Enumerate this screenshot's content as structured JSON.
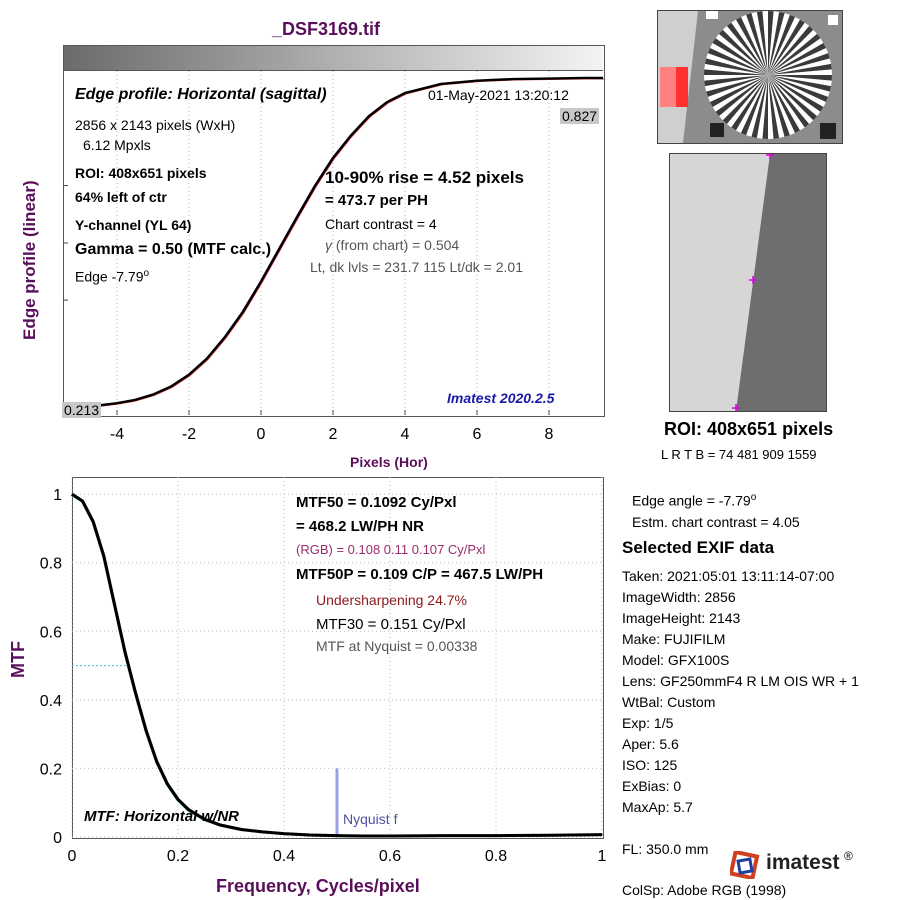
{
  "file_title": "_DSF3169.tif",
  "edge": {
    "title": "Edge profile: Horizontal (sagittal)",
    "datetime": "01-May-2021 13:20:12",
    "dims": "2856 x 2143 pixels (WxH)",
    "mpxls": "6.12 Mpxls",
    "roi": "ROI:  408x651 pixels",
    "position": "64% left of ctr",
    "channel": "Y-channel  (YL 64)",
    "gamma": "Gamma = 0.50 (MTF calc.)",
    "edge_angle_label": "Edge  -7.79",
    "edge_angle_sup": "o",
    "rise": "10-90% rise = 4.52 pixels",
    "per_ph": "=  473.7 per PH",
    "chart_contrast": "Chart contrast = 4",
    "gamma_symbol": "γ",
    "gamma_chart": " (from chart) = 0.504",
    "levels": "Lt, dk lvls = 231.7  115  Lt/dk = 2.01",
    "version": "Imatest 2020.2.5",
    "top_value": "0.827",
    "bottom_value": "0.213",
    "ylabel": "Edge profile (linear)",
    "xlabel": "Pixels (Hor)"
  },
  "mtf": {
    "mtf50": "MTF50 = 0.1092 Cy/Pxl",
    "lwph": "= 468.2 LW/PH  NR",
    "rgb": "(RGB) = 0.108  0.11  0.107 Cy/Pxl",
    "mtf50p": "MTF50P = 0.109 C/P = 467.5 LW/PH",
    "undersharpening": "Undersharpening 24.7%",
    "mtf30": "MTF30 = 0.151 Cy/Pxl",
    "nyquist_mtf": "MTF at Nyquist = 0.00338",
    "plot_label": "MTF: Horizontal w/NR",
    "nyquist_label": "Nyquist f",
    "ylabel": "MTF",
    "xlabel": "Frequency, Cycles/pixel"
  },
  "roi_panel": {
    "title": "ROI:  408x651 pixels",
    "coords": "L R  T B = 74 481  909 1559",
    "edge_angle": "Edge angle = -7.79",
    "edge_angle_sup": "o",
    "contrast": "Estm. chart contrast = 4.05"
  },
  "exif": {
    "heading": "Selected EXIF data",
    "rows": [
      "Taken: 2021:05:01 13:11:14-07:00",
      "ImageWidth:  2856",
      "ImageHeight:  2143",
      "Make:  FUJIFILM",
      "Model:  GFX100S",
      "Lens:    GF250mmF4 R LM OIS WR + 1",
      "WtBal:  Custom",
      "Exp:     1/5",
      "Aper:    5.6",
      "ISO:     125",
      "ExBias:  0",
      "MaxAp:  5.7",
      "FL:      350.0 mm",
      "ColSp:  Adobe RGB (1998)"
    ]
  },
  "logo_text": "imatest",
  "logo_reg": "®",
  "colors": {
    "title": "#5a0f5a",
    "version": "#1a1aa8",
    "curve": "#000000",
    "nyquist": "#9aa0e0",
    "marker": "#e000e0"
  },
  "chart_data": [
    {
      "type": "line",
      "title": "Edge profile: Horizontal (sagittal)",
      "xlabel": "Pixels (Hor)",
      "ylabel": "Edge profile (linear)",
      "xlim": [
        -5.5,
        9.5
      ],
      "ylim": [
        0.2,
        0.84
      ],
      "xticks": [
        -4,
        -2,
        0,
        2,
        4,
        6,
        8
      ],
      "grid": true,
      "series": [
        {
          "x": [
            -5.5,
            -5,
            -4.5,
            -4,
            -3.5,
            -3,
            -2.5,
            -2,
            -1.5,
            -1,
            -0.5,
            0,
            0.5,
            1,
            1.5,
            2,
            2.5,
            3,
            3.5,
            4,
            5,
            6,
            7,
            8,
            9,
            9.5
          ],
          "y": [
            0.213,
            0.215,
            0.218,
            0.222,
            0.228,
            0.238,
            0.253,
            0.275,
            0.305,
            0.345,
            0.392,
            0.448,
            0.508,
            0.568,
            0.626,
            0.678,
            0.72,
            0.756,
            0.782,
            0.799,
            0.816,
            0.822,
            0.825,
            0.826,
            0.827,
            0.827
          ]
        }
      ]
    },
    {
      "type": "line",
      "title": "MTF: Horizontal w/NR",
      "xlabel": "Frequency, Cycles/pixel",
      "ylabel": "MTF",
      "xlim": [
        0,
        1
      ],
      "ylim": [
        0,
        1.05
      ],
      "xticks": [
        0,
        0.2,
        0.4,
        0.6,
        0.8,
        1
      ],
      "yticks": [
        0,
        0.2,
        0.4,
        0.6,
        0.8,
        1
      ],
      "grid": true,
      "series": [
        {
          "x": [
            0,
            0.02,
            0.04,
            0.06,
            0.08,
            0.1,
            0.12,
            0.14,
            0.16,
            0.18,
            0.2,
            0.22,
            0.25,
            0.28,
            0.32,
            0.36,
            0.4,
            0.45,
            0.5,
            0.55,
            0.6,
            0.7,
            0.8,
            0.9,
            1.0
          ],
          "y": [
            1.0,
            0.98,
            0.92,
            0.82,
            0.68,
            0.54,
            0.42,
            0.31,
            0.22,
            0.155,
            0.11,
            0.08,
            0.052,
            0.035,
            0.022,
            0.015,
            0.01,
            0.006,
            0.004,
            0.003,
            0.003,
            0.004,
            0.004,
            0.005,
            0.007
          ]
        }
      ],
      "nyquist": {
        "x": 0.5,
        "height": 0.2
      }
    }
  ]
}
